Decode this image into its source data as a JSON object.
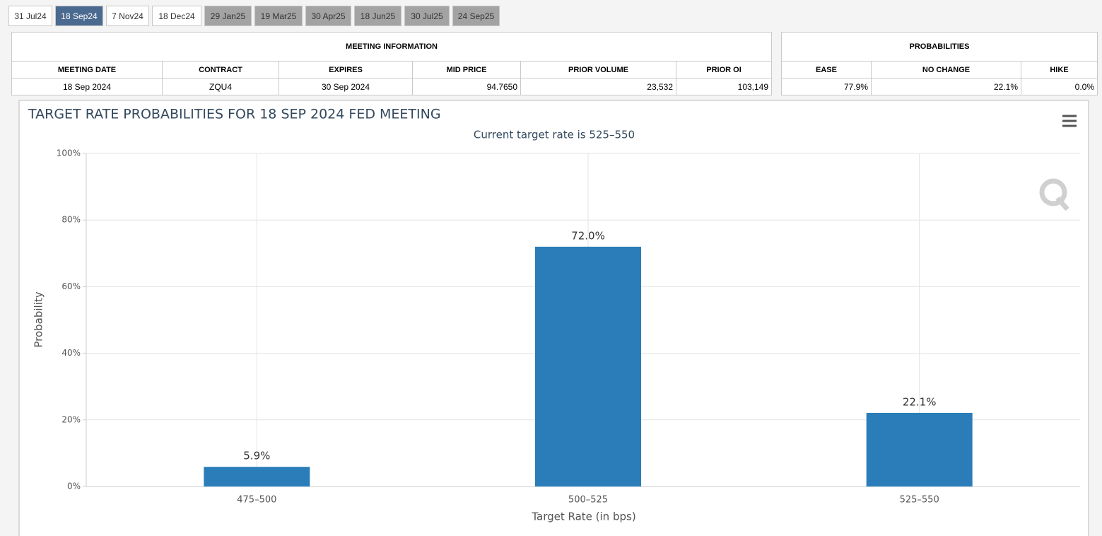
{
  "tabs": [
    {
      "label": "31 Jul24",
      "state": "normal"
    },
    {
      "label": "18 Sep24",
      "state": "active"
    },
    {
      "label": "7 Nov24",
      "state": "normal"
    },
    {
      "label": "18 Dec24",
      "state": "normal"
    },
    {
      "label": "29 Jan25",
      "state": "disabled"
    },
    {
      "label": "19 Mar25",
      "state": "disabled"
    },
    {
      "label": "30 Apr25",
      "state": "disabled"
    },
    {
      "label": "18 Jun25",
      "state": "disabled"
    },
    {
      "label": "30 Jul25",
      "state": "disabled"
    },
    {
      "label": "24 Sep25",
      "state": "disabled"
    }
  ],
  "meeting_table": {
    "title": "MEETING INFORMATION",
    "headers": [
      "MEETING DATE",
      "CONTRACT",
      "EXPIRES",
      "MID PRICE",
      "PRIOR VOLUME",
      "PRIOR OI"
    ],
    "row": [
      "18 Sep 2024",
      "ZQU4",
      "30 Sep 2024",
      "94.7650",
      "23,532",
      "103,149"
    ]
  },
  "prob_table": {
    "title": "PROBABILITIES",
    "headers": [
      "EASE",
      "NO CHANGE",
      "HIKE"
    ],
    "row": [
      "77.9%",
      "22.1%",
      "0.0%"
    ]
  },
  "chart_data": {
    "type": "bar",
    "title": "TARGET RATE PROBABILITIES FOR 18 SEP 2024 FED MEETING",
    "subtitle": "Current target rate is 525–550",
    "x_label": "Target Rate (in bps)",
    "y_label": "Probability",
    "categories": [
      "475–500",
      "500–525",
      "525–550"
    ],
    "values": [
      5.9,
      72.0,
      22.1
    ],
    "value_labels": [
      "5.9%",
      "72.0%",
      "22.1%"
    ],
    "color": "#2a7db8",
    "ylim": [
      0,
      100
    ],
    "yticks": [
      {
        "value": 0,
        "label": "0%"
      },
      {
        "value": 20,
        "label": "20%"
      },
      {
        "value": 40,
        "label": "40%"
      },
      {
        "value": 60,
        "label": "60%"
      },
      {
        "value": 80,
        "label": "80%"
      },
      {
        "value": 100,
        "label": "100%"
      }
    ],
    "grid": true
  }
}
